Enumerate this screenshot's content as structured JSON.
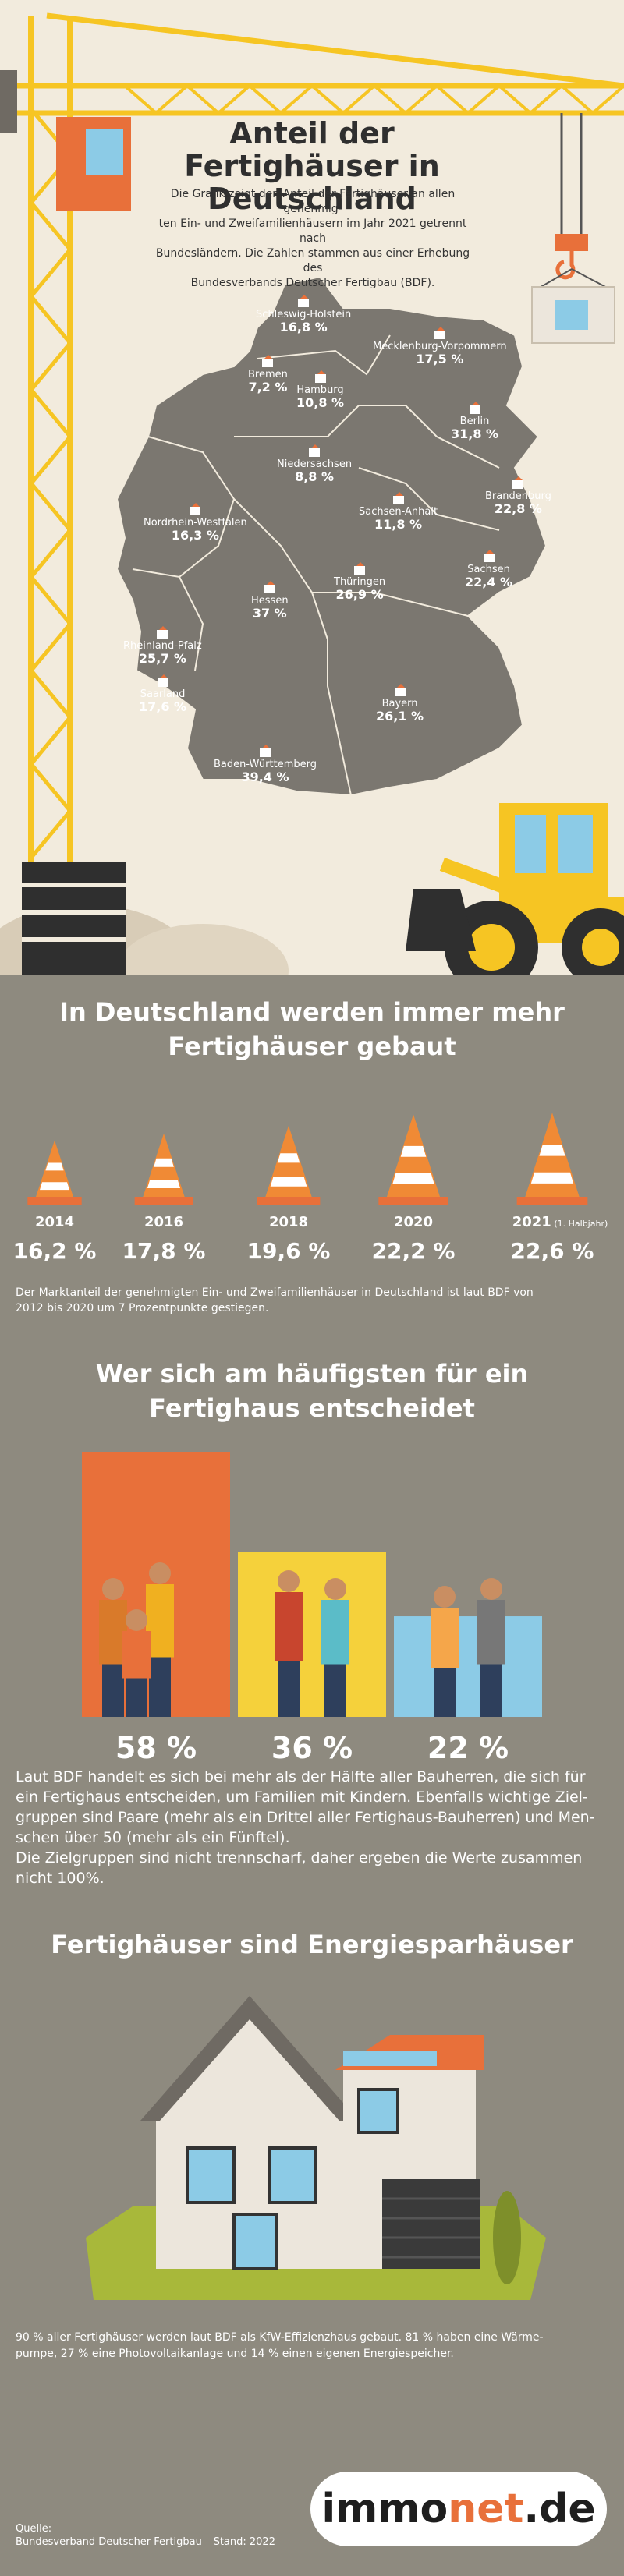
{
  "header": {
    "title_line1": "Anteil der Fertighäuser in",
    "title_line2": "Deutschland",
    "intro_lines": [
      "Die Grafik zeigt den Anteil der Fertighäuser an allen genehmig-",
      "ten Ein- und Zweifamilienhäusern im Jahr 2021 getrennt nach",
      "Bundesländern. Die Zahlen stammen aus einer Erhebung des",
      "Bundesverbands Deutscher Fertigbau (BDF)."
    ]
  },
  "map": {
    "states": [
      {
        "name": "Schleswig-Holstein",
        "value": "16,8 %"
      },
      {
        "name": "Mecklenburg-Vorpommern",
        "value": "17,5 %"
      },
      {
        "name": "Bremen",
        "value": "7,2 %"
      },
      {
        "name": "Hamburg",
        "value": "10,8 %"
      },
      {
        "name": "Berlin",
        "value": "31,8 %"
      },
      {
        "name": "Niedersachsen",
        "value": "8,8 %"
      },
      {
        "name": "Brandenburg",
        "value": "22,8 %"
      },
      {
        "name": "Nordrhein-Westfalen",
        "value": "16,3 %"
      },
      {
        "name": "Sachsen-Anhalt",
        "value": "11,8 %"
      },
      {
        "name": "Sachsen",
        "value": "22,4 %"
      },
      {
        "name": "Thüringen",
        "value": "26,9 %"
      },
      {
        "name": "Hessen",
        "value": "37 %"
      },
      {
        "name": "Rheinland-Pfalz",
        "value": "25,7 %"
      },
      {
        "name": "Saarland",
        "value": "17,6 %"
      },
      {
        "name": "Bayern",
        "value": "26,1 %"
      },
      {
        "name": "Baden-Württemberg",
        "value": "39,4 %"
      }
    ]
  },
  "trend": {
    "heading_line1": "In Deutschland werden immer mehr",
    "heading_line2": "Fertighäuser gebaut",
    "note_lines": [
      "Der Marktanteil der genehmigten Ein- und Zweifamilienhäuser in Deutschland ist laut BDF von",
      "2012 bis 2020 um 7 Prozentpunkte gestiegen."
    ],
    "h1_note": "(1. Halbjahr)"
  },
  "buyers": {
    "heading_line1": "Wer sich am häufigsten für ein",
    "heading_line2": "Fertighaus entscheidet",
    "paragraph": [
      "Laut BDF handelt es sich bei mehr als der Hälfte aller Bauherren, die sich für",
      "ein Fertighaus entscheiden, um Familien mit Kindern. Ebenfalls wichtige Ziel-",
      "gruppen sind Paare (mehr als ein Drittel aller Fertighaus-Bauherren) und Men-",
      "schen über 50 (mehr als ein Fünftel).",
      "Die Zielgruppen sind nicht trennscharf, daher ergeben die Werte zusammen",
      "nicht 100%."
    ]
  },
  "energy": {
    "heading": "Fertighäuser sind Energiesparhäuser",
    "note_lines": [
      "90 % aller Fertighäuser werden laut BDF als KfW-Effizienzhaus gebaut. 81 % haben eine Wärme-",
      "pumpe, 27 % eine Photovoltaikanlage und 14 % einen eigenen Energiespeicher."
    ]
  },
  "footer": {
    "source_label": "Quelle:",
    "source_text": "Bundesverband Deutscher Fertigbau – Stand: 2022",
    "logo_part1": "immo",
    "logo_part2": "net",
    "logo_part3": ".de"
  },
  "colors": {
    "orange": "#e8703a",
    "yellow": "#f5d13b",
    "blue": "#8ccbe6",
    "crane": "#f6c523",
    "map_gray": "#7b7770",
    "panel": "#8e8a7f"
  },
  "chart_data": [
    {
      "type": "bar",
      "categories": [
        "2014",
        "2016",
        "2018",
        "2020",
        "2021"
      ],
      "values": [
        16.2,
        17.8,
        19.6,
        22.2,
        22.6
      ],
      "value_labels": [
        "16,2 %",
        "17,8 %",
        "19,6 %",
        "22,2 %",
        "22,6 %"
      ],
      "title": "",
      "xlabel": "",
      "ylabel": ""
    },
    {
      "type": "bar",
      "categories": [
        "",
        "",
        ""
      ],
      "values": [
        58,
        36,
        22
      ],
      "value_labels": [
        "58 %",
        "36 %",
        "22 %"
      ],
      "colors": [
        "#e8703a",
        "#f5d13b",
        "#8ccbe6"
      ],
      "title": "",
      "xlabel": "",
      "ylabel": "",
      "ylim": [
        0,
        58
      ]
    }
  ]
}
